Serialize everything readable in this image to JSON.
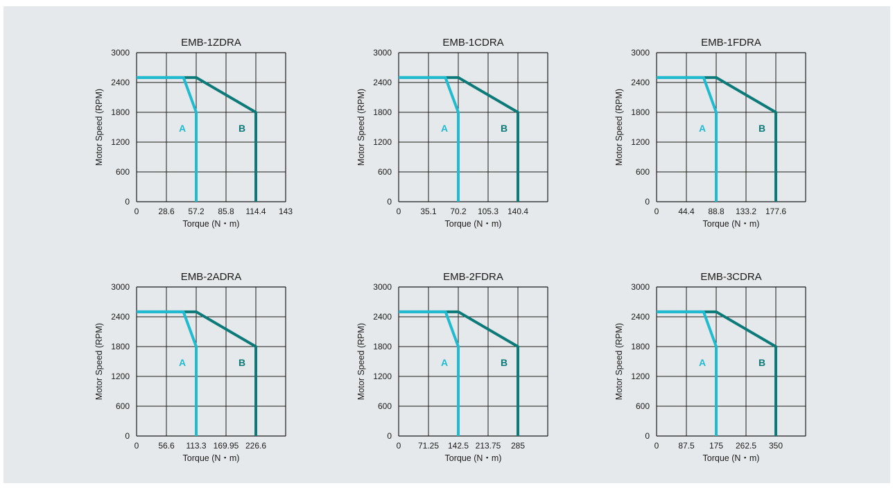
{
  "colors": {
    "background": "#e6e9eb",
    "grid": "#1a1a1a",
    "curve_a": "#1fbcd1",
    "curve_b": "#0b7a78"
  },
  "chart_data": [
    {
      "type": "line",
      "title": "EMB-1ZDRA",
      "xlabel": "Torque (N・m)",
      "ylabel": "Motor Speed (RPM)",
      "x_ticks": [
        "0",
        "28.6",
        "57.2",
        "85.8",
        "114.4",
        "143"
      ],
      "y_ticks": [
        "0",
        "600",
        "1200",
        "1800",
        "2400",
        "3000"
      ],
      "xlim": [
        0,
        143
      ],
      "ylim": [
        0,
        3000
      ],
      "grid": true,
      "series": [
        {
          "name": "A",
          "x": [
            0,
            45,
            57.2,
            57.2
          ],
          "y": [
            2500,
            2500,
            1800,
            0
          ]
        },
        {
          "name": "B",
          "x": [
            0,
            57.2,
            114.4,
            114.4
          ],
          "y": [
            2500,
            2500,
            1800,
            0
          ]
        }
      ]
    },
    {
      "type": "line",
      "title": "EMB-1CDRA",
      "xlabel": "Torque (N・m)",
      "ylabel": "Motor Speed (RPM)",
      "x_ticks": [
        "0",
        "35.1",
        "70.2",
        "105.3",
        "140.4",
        ""
      ],
      "y_ticks": [
        "0",
        "600",
        "1200",
        "1800",
        "2400",
        "3000"
      ],
      "xlim": [
        0,
        175.5
      ],
      "ylim": [
        0,
        3000
      ],
      "grid": true,
      "series": [
        {
          "name": "A",
          "x": [
            0,
            55,
            70.2,
            70.2
          ],
          "y": [
            2500,
            2500,
            1800,
            0
          ]
        },
        {
          "name": "B",
          "x": [
            0,
            70.2,
            140.4,
            140.4
          ],
          "y": [
            2500,
            2500,
            1800,
            0
          ]
        }
      ]
    },
    {
      "type": "line",
      "title": "EMB-1FDRA",
      "xlabel": "Torque (N・m)",
      "ylabel": "Motor Speed (RPM)",
      "x_ticks": [
        "0",
        "44.4",
        "88.8",
        "133.2",
        "177.6",
        ""
      ],
      "y_ticks": [
        "0",
        "600",
        "1200",
        "1800",
        "2400",
        "3000"
      ],
      "xlim": [
        0,
        222
      ],
      "ylim": [
        0,
        3000
      ],
      "grid": true,
      "series": [
        {
          "name": "A",
          "x": [
            0,
            70,
            88.8,
            88.8
          ],
          "y": [
            2500,
            2500,
            1800,
            0
          ]
        },
        {
          "name": "B",
          "x": [
            0,
            88.8,
            177.6,
            177.6
          ],
          "y": [
            2500,
            2500,
            1800,
            0
          ]
        }
      ]
    },
    {
      "type": "line",
      "title": "EMB-2ADRA",
      "xlabel": "Torque (N・m)",
      "ylabel": "Motor Speed (RPM)",
      "x_ticks": [
        "0",
        "56.6",
        "113.3",
        "169.95",
        "226.6",
        ""
      ],
      "y_ticks": [
        "0",
        "600",
        "1200",
        "1800",
        "2400",
        "3000"
      ],
      "xlim": [
        0,
        283.25
      ],
      "ylim": [
        0,
        3000
      ],
      "grid": true,
      "series": [
        {
          "name": "A",
          "x": [
            0,
            89,
            113.3,
            113.3
          ],
          "y": [
            2500,
            2500,
            1800,
            0
          ]
        },
        {
          "name": "B",
          "x": [
            0,
            113.3,
            226.6,
            226.6
          ],
          "y": [
            2500,
            2500,
            1800,
            0
          ]
        }
      ]
    },
    {
      "type": "line",
      "title": "EMB-2FDRA",
      "xlabel": "Torque (N・m)",
      "ylabel": "Motor Speed (RPM)",
      "x_ticks": [
        "0",
        "71.25",
        "142.5",
        "213.75",
        "285",
        ""
      ],
      "y_ticks": [
        "0",
        "600",
        "1200",
        "1800",
        "2400",
        "3000"
      ],
      "xlim": [
        0,
        356.25
      ],
      "ylim": [
        0,
        3000
      ],
      "grid": true,
      "series": [
        {
          "name": "A",
          "x": [
            0,
            112,
            142.5,
            142.5
          ],
          "y": [
            2500,
            2500,
            1800,
            0
          ]
        },
        {
          "name": "B",
          "x": [
            0,
            142.5,
            285,
            285
          ],
          "y": [
            2500,
            2500,
            1800,
            0
          ]
        }
      ]
    },
    {
      "type": "line",
      "title": "EMB-3CDRA",
      "xlabel": "Torque (N・m)",
      "ylabel": "Motor Speed (RPM)",
      "x_ticks": [
        "0",
        "87.5",
        "175",
        "262.5",
        "350",
        ""
      ],
      "y_ticks": [
        "0",
        "600",
        "1200",
        "1800",
        "2400",
        "3000"
      ],
      "xlim": [
        0,
        437.5
      ],
      "ylim": [
        0,
        3000
      ],
      "grid": true,
      "series": [
        {
          "name": "A",
          "x": [
            0,
            138,
            175,
            175
          ],
          "y": [
            2500,
            2500,
            1800,
            0
          ]
        },
        {
          "name": "B",
          "x": [
            0,
            175,
            350,
            350
          ],
          "y": [
            2500,
            2500,
            1800,
            0
          ]
        }
      ]
    }
  ]
}
